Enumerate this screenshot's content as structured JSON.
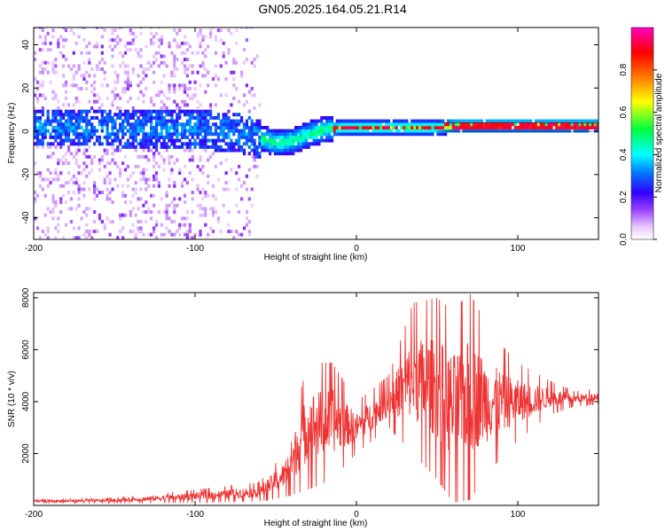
{
  "title": "GN05.2025.164.05.21.R14",
  "chart_data": [
    {
      "type": "heatmap",
      "xlabel": "Height of straight line (km)",
      "ylabel": "Frequency (Hz)",
      "xlim": [
        -200,
        150
      ],
      "ylim": [
        -50,
        48
      ],
      "x_ticks": [
        -200,
        -100,
        0,
        100
      ],
      "y_ticks": [
        -40,
        -20,
        0,
        20,
        40
      ],
      "colorbar": {
        "label": "Normalized spectral amplitude",
        "range": [
          0,
          1
        ],
        "ticks": [
          "0.0",
          "0.2",
          "0.4",
          "0.6",
          "0.8"
        ],
        "colormap": "white-violet-blue-cyan-green-yellow-orange-red-magenta"
      },
      "ridge": [
        {
          "x": -200,
          "y": 1
        },
        {
          "x": -150,
          "y": 1
        },
        {
          "x": -100,
          "y": 0
        },
        {
          "x": -80,
          "y": -1
        },
        {
          "x": -60,
          "y": -4
        },
        {
          "x": -50,
          "y": -6
        },
        {
          "x": -40,
          "y": -5
        },
        {
          "x": -30,
          "y": -2
        },
        {
          "x": -20,
          "y": 0
        },
        {
          "x": -10,
          "y": 1
        },
        {
          "x": 0,
          "y": 1
        },
        {
          "x": 50,
          "y": 1
        },
        {
          "x": 60,
          "y": 2
        },
        {
          "x": 100,
          "y": 2
        },
        {
          "x": 150,
          "y": 2
        }
      ],
      "grid": false
    },
    {
      "type": "line",
      "xlabel": "Height of straight line (km)",
      "ylabel": "SNR (10 * v/v)",
      "xlim": [
        -200,
        150
      ],
      "ylim": [
        0,
        8200
      ],
      "x_ticks": [
        -200,
        -100,
        0,
        100
      ],
      "y_ticks": [
        2000,
        4000,
        6000,
        8000
      ],
      "series": [
        {
          "color": "#ee3333",
          "envelope": [
            {
              "x": -200,
              "low": 80,
              "high": 250
            },
            {
              "x": -150,
              "low": 80,
              "high": 300
            },
            {
              "x": -100,
              "low": 100,
              "high": 600
            },
            {
              "x": -60,
              "low": 150,
              "high": 900
            },
            {
              "x": -45,
              "low": 300,
              "high": 2000
            },
            {
              "x": -30,
              "low": 600,
              "high": 5500
            },
            {
              "x": -15,
              "low": 1000,
              "high": 5500
            },
            {
              "x": 0,
              "low": 2000,
              "high": 4000
            },
            {
              "x": 20,
              "low": 3000,
              "high": 5000
            },
            {
              "x": 35,
              "low": 2000,
              "high": 7800
            },
            {
              "x": 50,
              "low": 1000,
              "high": 8000
            },
            {
              "x": 60,
              "low": 100,
              "high": 7500
            },
            {
              "x": 70,
              "low": 200,
              "high": 8200
            },
            {
              "x": 85,
              "low": 1500,
              "high": 6500
            },
            {
              "x": 100,
              "low": 2500,
              "high": 5500
            },
            {
              "x": 120,
              "low": 3500,
              "high": 4800
            },
            {
              "x": 135,
              "low": 3800,
              "high": 4400
            },
            {
              "x": 150,
              "low": 3900,
              "high": 4500
            }
          ]
        }
      ],
      "grid": false
    }
  ]
}
